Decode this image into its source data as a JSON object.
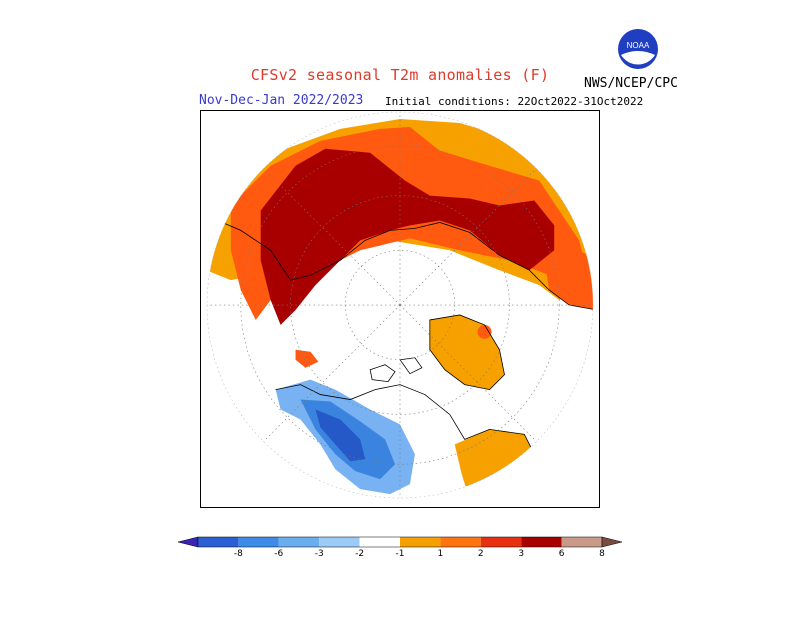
{
  "header": {
    "title": "CFSv2 seasonal T2m anomalies (F)",
    "period": "Nov-Dec-Jan 2022/2023",
    "initial_conditions": "Initial conditions: 22Oct2022-31Oct2022",
    "agency": "NWS/NCEP/CPC",
    "logo_text": "NOAA"
  },
  "colorbar": {
    "labels": [
      "-8",
      "-6",
      "-3",
      "-2",
      "-1",
      "1",
      "2",
      "3",
      "6",
      "8"
    ],
    "colors": [
      "#3a24b8",
      "#2c5fd6",
      "#3f8ce8",
      "#6aaef0",
      "#9ccbf6",
      "#ffffff",
      "#f5a000",
      "#ff7410",
      "#e83010",
      "#a80000",
      "#c99a8a",
      "#7b4a40"
    ]
  },
  "legend_colors": {
    "warm_1_2": "#f7a100",
    "warm_2_3": "#ff5a10",
    "warm_3_6": "#a80000",
    "cold_1_2": "#79b2f2",
    "cold_2_3": "#3a84e0",
    "cold_3_6": "#2559c8"
  }
}
